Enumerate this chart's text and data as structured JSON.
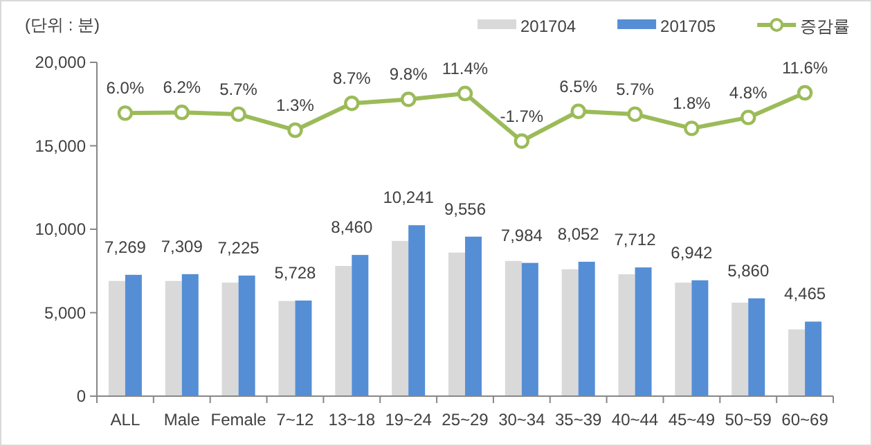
{
  "chart_data": {
    "type": "bar",
    "ylabel": "(단위 : 분)",
    "categories": [
      "ALL",
      "Male",
      "Female",
      "7~12",
      "13~18",
      "19~24",
      "25~29",
      "30~34",
      "35~39",
      "40~44",
      "45~49",
      "50~59",
      "60~69"
    ],
    "series": [
      {
        "name": "201704",
        "color": "#d9d9d9",
        "values": [
          6900,
          6900,
          6800,
          5700,
          7800,
          9300,
          8600,
          8100,
          7600,
          7300,
          6800,
          5600,
          4000
        ]
      },
      {
        "name": "201705",
        "color": "#558ed5",
        "values": [
          7269,
          7309,
          7225,
          5728,
          8460,
          10241,
          9556,
          7984,
          8052,
          7712,
          6942,
          5860,
          4465
        ],
        "value_labels": [
          "7,269",
          "7,309",
          "7,225",
          "5,728",
          "8,460",
          "10,241",
          "9,556",
          "7,984",
          "8,052",
          "7,712",
          "6,942",
          "5,860",
          "4,465"
        ]
      },
      {
        "name": "증감률",
        "type": "line",
        "axis": "y2",
        "color": "#9bbb59",
        "marker": "circle",
        "values": [
          6.0,
          6.2,
          5.7,
          1.3,
          8.7,
          9.8,
          11.4,
          -1.7,
          6.5,
          5.7,
          1.8,
          4.8,
          11.6
        ],
        "value_labels": [
          "6.0%",
          "6.2%",
          "5.7%",
          "1.3%",
          "8.7%",
          "9.8%",
          "11.4%",
          "-1.7%",
          "6.5%",
          "5.7%",
          "1.8%",
          "4.8%",
          "11.6%"
        ]
      }
    ],
    "ylim": [
      0,
      20000
    ],
    "yticks": [
      {
        "value": 0,
        "label": "0"
      },
      {
        "value": 5000,
        "label": "5,000"
      },
      {
        "value": 10000,
        "label": "10,000"
      },
      {
        "value": 15000,
        "label": "15,000"
      },
      {
        "value": 20000,
        "label": "20,000"
      }
    ],
    "y2lim": [
      -72,
      20
    ],
    "grid": false,
    "legend": "top right"
  }
}
